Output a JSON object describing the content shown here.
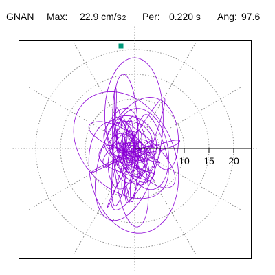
{
  "header": {
    "station": "GNAN",
    "max_label": "Max:",
    "max_value": "22.9 cm/s",
    "max_sup": "2",
    "per_label": "Per:",
    "per_value": "0.220 s",
    "ang_label": "Ang:",
    "ang_value": "97.6"
  },
  "colors": {
    "trace": "#8b00d6",
    "marker": "#00997a",
    "grid": "#888888",
    "axis": "#000000"
  },
  "chart_data": {
    "type": "polar-particle-motion",
    "radial_ticks": [
      10,
      15,
      20
    ],
    "rings": [
      5,
      10,
      15,
      20
    ],
    "r_max": 25,
    "spokes_deg": [
      0,
      30,
      60,
      90,
      120,
      150,
      180,
      210,
      240,
      270,
      300,
      330
    ],
    "grid_style": "dotted",
    "peak_marker": {
      "r": 22.9,
      "angle_deg": 97.6
    }
  }
}
